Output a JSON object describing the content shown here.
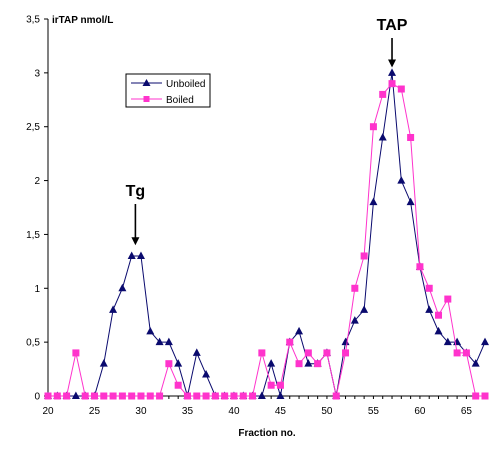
{
  "chart_data": {
    "type": "line",
    "ylabel": "irTAP nmol/L",
    "xlabel": "Fraction no.",
    "xlim": [
      20,
      67
    ],
    "ylim": [
      0,
      3.5
    ],
    "x_ticks": [
      20,
      25,
      30,
      35,
      40,
      45,
      50,
      55,
      60,
      65
    ],
    "y_ticks": [
      0,
      0.5,
      1,
      1.5,
      2,
      2.5,
      3,
      3.5
    ],
    "y_tick_labels": [
      "0",
      "0,5",
      "1",
      "1,5",
      "2",
      "2,5",
      "3",
      "3,5"
    ],
    "legend_position": "upper-left, inside plot",
    "annotations": [
      {
        "text": "Tg",
        "x": 29.4,
        "arrow_to_y": 1.4
      },
      {
        "text": "TAP",
        "x": 57,
        "arrow_to_y": 3.05
      }
    ],
    "series": [
      {
        "name": "Unboiled",
        "color": "#0a0a6e",
        "marker": "triangle",
        "points": [
          [
            20,
            0
          ],
          [
            21,
            0
          ],
          [
            22,
            0
          ],
          [
            23,
            0
          ],
          [
            24,
            0
          ],
          [
            25,
            0
          ],
          [
            26,
            0.3
          ],
          [
            27,
            0.8
          ],
          [
            28,
            1.0
          ],
          [
            29,
            1.3
          ],
          [
            30,
            1.3
          ],
          [
            31,
            0.6
          ],
          [
            32,
            0.5
          ],
          [
            33,
            0.5
          ],
          [
            34,
            0.3
          ],
          [
            35,
            0
          ],
          [
            36,
            0.4
          ],
          [
            37,
            0.2
          ],
          [
            38,
            0
          ],
          [
            39,
            0
          ],
          [
            40,
            0
          ],
          [
            41,
            0
          ],
          [
            42,
            0
          ],
          [
            43,
            0
          ],
          [
            44,
            0.3
          ],
          [
            45,
            0
          ],
          [
            46,
            0.5
          ],
          [
            47,
            0.6
          ],
          [
            48,
            0.3
          ],
          [
            49,
            0.3
          ],
          [
            50,
            0.4
          ],
          [
            51,
            0
          ],
          [
            52,
            0.5
          ],
          [
            53,
            0.7
          ],
          [
            54,
            0.8
          ],
          [
            55,
            1.8
          ],
          [
            56,
            2.4
          ],
          [
            57,
            3.0
          ],
          [
            58,
            2.0
          ],
          [
            59,
            1.8
          ],
          [
            60,
            1.2
          ],
          [
            61,
            0.8
          ],
          [
            62,
            0.6
          ],
          [
            63,
            0.5
          ],
          [
            64,
            0.5
          ],
          [
            65,
            0.4
          ],
          [
            66,
            0.3
          ],
          [
            67,
            0.5
          ]
        ]
      },
      {
        "name": "Boiled",
        "color": "#ff33cc",
        "marker": "square",
        "points": [
          [
            20,
            0
          ],
          [
            21,
            0
          ],
          [
            22,
            0
          ],
          [
            23,
            0.4
          ],
          [
            24,
            0
          ],
          [
            25,
            0
          ],
          [
            26,
            0
          ],
          [
            27,
            0
          ],
          [
            28,
            0
          ],
          [
            29,
            0
          ],
          [
            30,
            0
          ],
          [
            31,
            0
          ],
          [
            32,
            0
          ],
          [
            33,
            0.3
          ],
          [
            34,
            0.1
          ],
          [
            35,
            0
          ],
          [
            36,
            0
          ],
          [
            37,
            0
          ],
          [
            38,
            0
          ],
          [
            39,
            0
          ],
          [
            40,
            0
          ],
          [
            41,
            0
          ],
          [
            42,
            0
          ],
          [
            43,
            0.4
          ],
          [
            44,
            0.1
          ],
          [
            45,
            0.1
          ],
          [
            46,
            0.5
          ],
          [
            47,
            0.3
          ],
          [
            48,
            0.4
          ],
          [
            49,
            0.3
          ],
          [
            50,
            0.4
          ],
          [
            51,
            0
          ],
          [
            52,
            0.4
          ],
          [
            53,
            1.0
          ],
          [
            54,
            1.3
          ],
          [
            55,
            2.5
          ],
          [
            56,
            2.8
          ],
          [
            57,
            2.9
          ],
          [
            58,
            2.85
          ],
          [
            59,
            2.4
          ],
          [
            60,
            1.2
          ],
          [
            61,
            1.0
          ],
          [
            62,
            0.75
          ],
          [
            63,
            0.9
          ],
          [
            64,
            0.4
          ],
          [
            65,
            0.4
          ],
          [
            66,
            0
          ],
          [
            67,
            0
          ]
        ]
      }
    ]
  }
}
